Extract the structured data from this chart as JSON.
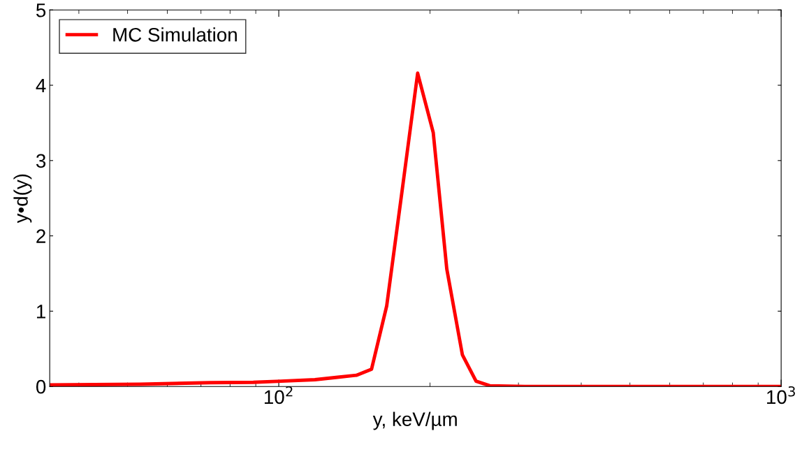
{
  "chart_data": {
    "type": "line",
    "xlabel": "y, keV/µm",
    "ylabel": "y•d(y)",
    "log": "x",
    "xlim": [
      35,
      1000
    ],
    "xticks": [
      {
        "value": 100,
        "label": "10$^{2}$"
      },
      {
        "value": 1000,
        "label": "10$^{3}$"
      }
    ],
    "ylim": [
      0,
      5
    ],
    "yticks": [
      0,
      1,
      2,
      3,
      4,
      5
    ],
    "grid": false,
    "legend": "top left",
    "line_style": "solid",
    "marker": "none",
    "series": [
      {
        "name": "MC Simulation",
        "color": "#ff0000",
        "x": [
          35,
          53,
          73,
          89,
          101,
          118,
          130,
          143,
          153,
          164,
          176,
          189,
          203,
          216,
          232,
          247,
          263,
          309,
          1000
        ],
        "values": [
          0.02,
          0.03,
          0.05,
          0.055,
          0.07,
          0.09,
          0.12,
          0.15,
          0.23,
          1.07,
          2.6,
          4.16,
          3.37,
          1.56,
          0.42,
          0.07,
          0.01,
          0,
          0
        ]
      }
    ]
  }
}
